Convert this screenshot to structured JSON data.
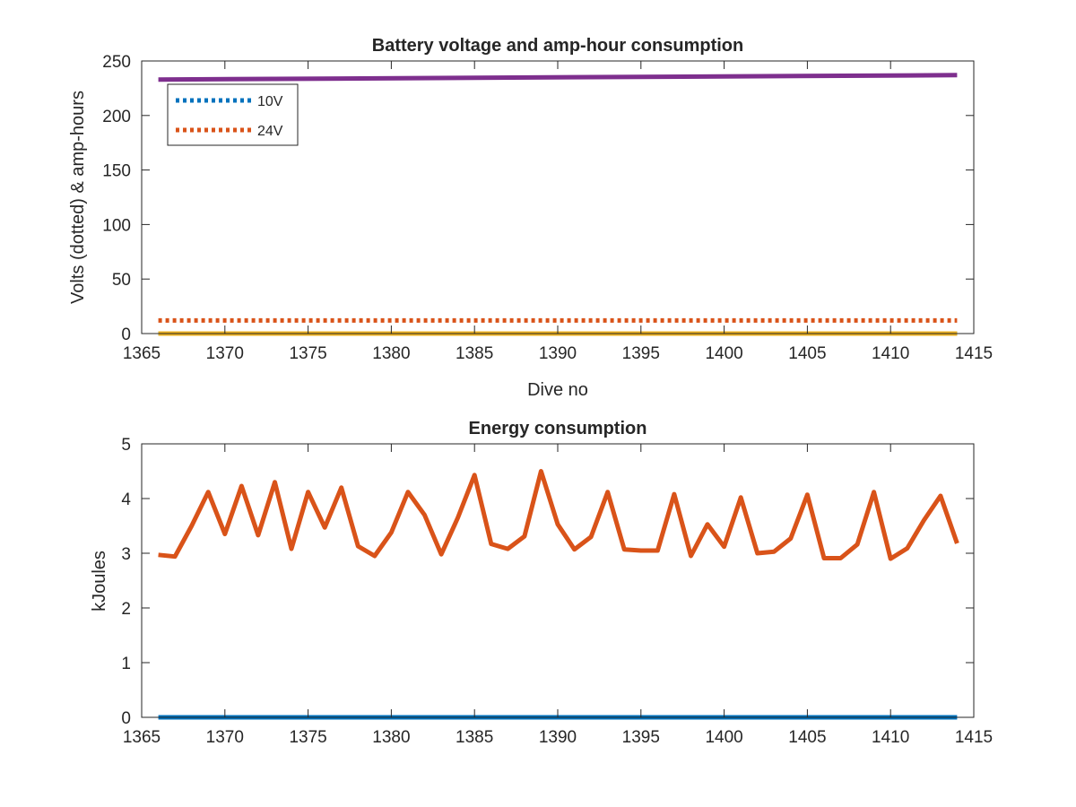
{
  "chart_data": [
    {
      "type": "line",
      "title": "Battery voltage and amp-hour consumption",
      "xlabel": "Dive no",
      "ylabel": "Volts (dotted) & amp-hours",
      "xlim": [
        1365,
        1415
      ],
      "ylim": [
        0,
        250
      ],
      "xticks": [
        1365,
        1370,
        1375,
        1380,
        1385,
        1390,
        1395,
        1400,
        1405,
        1410,
        1415
      ],
      "yticks": [
        0,
        50,
        100,
        150,
        200,
        250
      ],
      "legend_position": "top-left",
      "series": [
        {
          "name": "10V",
          "style": "dotted",
          "color": "#0072BD",
          "x": [
            1366,
            1414
          ],
          "values": [
            0,
            0
          ]
        },
        {
          "name": "24V",
          "style": "dotted",
          "color": "#D95319",
          "x": [
            1366,
            1414
          ],
          "values": [
            12,
            12
          ]
        },
        {
          "style": "solid",
          "color": "#EDB120",
          "x": [
            1366,
            1414
          ],
          "values": [
            0,
            0
          ]
        },
        {
          "style": "solid",
          "color": "#7E2F8E",
          "x": [
            1366,
            1414
          ],
          "values": [
            233,
            237
          ]
        }
      ]
    },
    {
      "type": "line",
      "title": "Energy consumption",
      "xlabel": "",
      "ylabel": "kJoules",
      "xlim": [
        1365,
        1415
      ],
      "ylim": [
        0,
        5
      ],
      "xticks": [
        1365,
        1370,
        1375,
        1380,
        1385,
        1390,
        1395,
        1400,
        1405,
        1410,
        1415
      ],
      "yticks": [
        0,
        1,
        2,
        3,
        4,
        5
      ],
      "series": [
        {
          "style": "solid",
          "color": "#0072BD",
          "x": [
            1366,
            1414
          ],
          "values": [
            0,
            0
          ]
        },
        {
          "style": "solid",
          "color": "#D95319",
          "x": [
            1366,
            1367,
            1368,
            1369,
            1370,
            1371,
            1372,
            1373,
            1374,
            1375,
            1376,
            1377,
            1378,
            1379,
            1380,
            1381,
            1382,
            1383,
            1384,
            1385,
            1386,
            1387,
            1388,
            1389,
            1390,
            1391,
            1392,
            1393,
            1394,
            1395,
            1396,
            1397,
            1398,
            1399,
            1400,
            1401,
            1402,
            1403,
            1404,
            1405,
            1406,
            1407,
            1408,
            1409,
            1410,
            1411,
            1412,
            1413,
            1414
          ],
          "values": [
            2.97,
            2.94,
            3.5,
            4.12,
            3.35,
            4.23,
            3.33,
            4.3,
            3.08,
            4.12,
            3.47,
            4.2,
            3.13,
            2.95,
            3.38,
            4.12,
            3.7,
            2.98,
            3.65,
            4.43,
            3.17,
            3.08,
            3.31,
            4.5,
            3.53,
            3.07,
            3.3,
            4.12,
            3.07,
            3.05,
            3.05,
            4.08,
            2.95,
            3.53,
            3.12,
            4.02,
            3.0,
            3.03,
            3.27,
            4.07,
            2.91,
            2.91,
            3.16,
            4.12,
            2.9,
            3.09,
            3.6,
            4.05,
            3.18
          ]
        }
      ]
    }
  ]
}
